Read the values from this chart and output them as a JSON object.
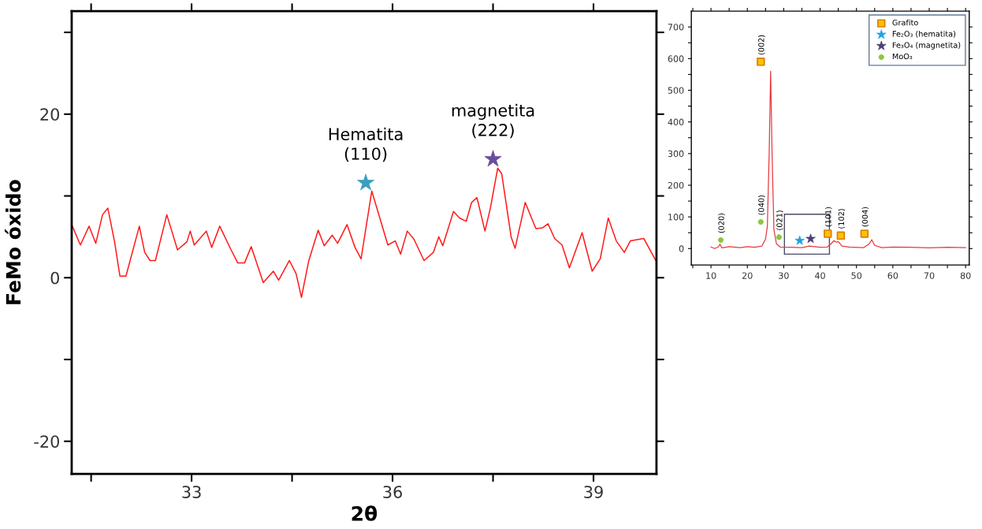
{
  "chart_data": [
    {
      "type": "line",
      "xlabel": "2θ",
      "ylabel": "FeMo óxido",
      "xlim": [
        31.21,
        39.94
      ],
      "ylim": [
        -24,
        32.6
      ],
      "xticks": [
        {
          "value": 31.5,
          "label": null
        },
        33,
        {
          "value": 34.5,
          "label": null
        },
        36,
        {
          "value": 37.5,
          "label": null
        },
        39
      ],
      "yticks": [
        -20,
        {
          "value": -10,
          "label": null
        },
        0,
        {
          "value": 10,
          "label": null
        },
        20,
        {
          "value": 30,
          "label": null
        }
      ],
      "grid": false,
      "legend": false,
      "series": [
        {
          "color": "#ff1a1a",
          "x": [
            31.22,
            31.34,
            31.47,
            31.57,
            31.67,
            31.75,
            31.85,
            31.93,
            32.02,
            32.22,
            32.3,
            32.38,
            32.46,
            32.63,
            32.79,
            32.93,
            32.98,
            33.04,
            33.22,
            33.3,
            33.42,
            33.59,
            33.69,
            33.79,
            33.89,
            34.07,
            34.22,
            34.3,
            34.46,
            34.56,
            34.64,
            34.75,
            34.89,
            34.98,
            35.1,
            35.18,
            35.32,
            35.44,
            35.53,
            35.69,
            35.81,
            35.93,
            36.04,
            36.12,
            36.22,
            36.32,
            36.47,
            36.61,
            36.69,
            36.75,
            36.91,
            37.0,
            37.1,
            37.18,
            37.26,
            37.38,
            37.46,
            37.57,
            37.63,
            37.77,
            37.83,
            37.98,
            38.14,
            38.24,
            38.32,
            38.42,
            38.53,
            38.64,
            38.83,
            38.98,
            39.1,
            39.22,
            39.34,
            39.46,
            39.55,
            39.75,
            39.93
          ],
          "values": [
            6.3,
            4.0,
            6.3,
            4.2,
            7.7,
            8.5,
            4.4,
            0.2,
            0.2,
            6.3,
            3.1,
            2.1,
            2.1,
            7.7,
            3.4,
            4.4,
            5.7,
            4.0,
            5.7,
            3.7,
            6.3,
            3.4,
            1.8,
            1.8,
            3.8,
            -0.6,
            0.8,
            -0.3,
            2.1,
            0.5,
            -2.4,
            2.1,
            5.8,
            3.9,
            5.2,
            4.2,
            6.5,
            3.7,
            2.3,
            10.6,
            7.3,
            4.0,
            4.5,
            2.9,
            5.7,
            4.7,
            2.1,
            3.1,
            5.0,
            3.9,
            8.1,
            7.3,
            6.9,
            9.2,
            9.8,
            5.7,
            8.5,
            13.4,
            12.7,
            5.0,
            3.6,
            9.2,
            6.0,
            6.1,
            6.6,
            4.8,
            4.0,
            1.2,
            5.5,
            0.8,
            2.3,
            7.3,
            4.5,
            3.1,
            4.5,
            4.8,
            2.1
          ]
        },
        {
          "type": "scatter",
          "marker": "star",
          "color": "#3a9fc0",
          "x": [
            35.6
          ],
          "values": [
            11.6
          ]
        },
        {
          "type": "scatter",
          "marker": "star",
          "color": "#6a4c9c",
          "x": [
            37.5
          ],
          "values": [
            14.5
          ]
        }
      ],
      "annotations": [
        {
          "text": "Hematita\n(110)",
          "x": 35.6,
          "y": 11.6
        },
        {
          "text": "magnetita\n(222)",
          "x": 37.5,
          "y": 14.5
        }
      ]
    },
    {
      "type": "line",
      "xlim": [
        4.6,
        81
      ],
      "ylim": [
        -52,
        750
      ],
      "xticks": [
        {
          "value": 5,
          "label": null
        },
        10,
        {
          "value": 15,
          "label": null
        },
        20,
        {
          "value": 25,
          "label": null
        },
        30,
        {
          "value": 35,
          "label": null
        },
        40,
        {
          "value": 45,
          "label": null
        },
        50,
        {
          "value": 55,
          "label": null
        },
        60,
        {
          "value": 65,
          "label": null
        },
        70,
        {
          "value": 75,
          "label": null
        },
        80
      ],
      "yticks": [
        0,
        {
          "value": 50,
          "label": null
        },
        100,
        {
          "value": 150,
          "label": null
        },
        200,
        {
          "value": 250,
          "label": null
        },
        300,
        {
          "value": 350,
          "label": null
        },
        400,
        {
          "value": 450,
          "label": null
        },
        500,
        {
          "value": 550,
          "label": null
        },
        600,
        {
          "value": 650,
          "label": null
        },
        700
      ],
      "grid": false,
      "legend": "top right",
      "series": [
        {
          "color": "#e8383d",
          "x": [
            10,
            11,
            12,
            12.5,
            13,
            15,
            18,
            20,
            22,
            24,
            25,
            25.5,
            26,
            26.4,
            26.8,
            27.3,
            28,
            29,
            32,
            35,
            37,
            40,
            42,
            43,
            43.8,
            44.5,
            45,
            46,
            48,
            52,
            53.5,
            54.2,
            55,
            57,
            60,
            65,
            70,
            75,
            80
          ],
          "values": [
            5,
            0,
            5,
            14,
            2,
            6,
            3,
            6,
            4,
            8,
            30,
            70,
            300,
            560,
            300,
            60,
            15,
            5,
            4,
            3,
            8,
            4,
            5,
            15,
            25,
            20,
            22,
            8,
            5,
            3,
            15,
            28,
            10,
            3,
            5,
            4,
            2,
            4,
            3
          ]
        },
        {
          "type": "scatter",
          "name": "Grafito",
          "marker": "square",
          "color": "#f5c400",
          "x": [
            23.7,
            42.1,
            45.7,
            52.2
          ],
          "values": [
            590,
            47,
            41,
            47
          ]
        },
        {
          "type": "scatter",
          "name": "Fe₂O₃ (hematita)",
          "marker": "star",
          "color": "#1fa3e0",
          "x": [
            34.4
          ],
          "values": [
            25
          ]
        },
        {
          "type": "scatter",
          "name": "Fe₃O₄ (magnetita)",
          "marker": "star",
          "color": "#4b3f78",
          "x": [
            37.4
          ],
          "values": [
            31
          ]
        },
        {
          "type": "scatter",
          "name": "MoO₃",
          "marker": "circle",
          "color": "#8cc63f",
          "x": [
            12.7,
            23.7,
            28.7
          ],
          "values": [
            27,
            84,
            36
          ]
        }
      ],
      "annotations": [
        {
          "text": "(020)",
          "x": 12.7,
          "y": 27
        },
        {
          "text": "(040)",
          "x": 23.7,
          "y": 84
        },
        {
          "text": "(002)",
          "x": 23.7,
          "y": 590
        },
        {
          "text": "(021)",
          "x": 28.7,
          "y": 36
        },
        {
          "text": "(101)",
          "x": 42.1,
          "y": 47
        },
        {
          "text": "(102)",
          "x": 45.7,
          "y": 41
        },
        {
          "text": "(004)",
          "x": 52.2,
          "y": 47
        }
      ]
    }
  ]
}
